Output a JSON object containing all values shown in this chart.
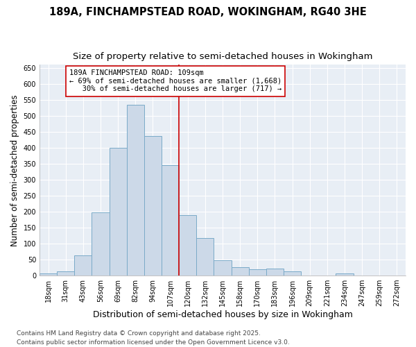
{
  "title": "189A, FINCHAMPSTEAD ROAD, WOKINGHAM, RG40 3HE",
  "subtitle": "Size of property relative to semi-detached houses in Wokingham",
  "xlabel": "Distribution of semi-detached houses by size in Wokingham",
  "ylabel": "Number of semi-detached properties",
  "bin_labels": [
    "18sqm",
    "31sqm",
    "43sqm",
    "56sqm",
    "69sqm",
    "82sqm",
    "94sqm",
    "107sqm",
    "120sqm",
    "132sqm",
    "145sqm",
    "158sqm",
    "170sqm",
    "183sqm",
    "196sqm",
    "209sqm",
    "221sqm",
    "234sqm",
    "247sqm",
    "259sqm",
    "272sqm"
  ],
  "bar_heights": [
    6,
    13,
    63,
    197,
    400,
    535,
    437,
    345,
    190,
    117,
    47,
    27,
    20,
    22,
    13,
    0,
    0,
    6,
    0,
    0,
    0
  ],
  "bar_color": "#ccd9e8",
  "bar_edge_color": "#7aaac8",
  "vline_index": 7,
  "vline_color": "#cc0000",
  "annotation_line1": "189A FINCHAMPSTEAD ROAD: 109sqm",
  "annotation_line2": "← 69% of semi-detached houses are smaller (1,668)",
  "annotation_line3": "   30% of semi-detached houses are larger (717) →",
  "annotation_box_color": "#ffffff",
  "annotation_box_edge": "#cc0000",
  "ylim": [
    0,
    660
  ],
  "yticks": [
    0,
    50,
    100,
    150,
    200,
    250,
    300,
    350,
    400,
    450,
    500,
    550,
    600,
    650
  ],
  "bg_color": "#ffffff",
  "plot_bg_color": "#e8eef5",
  "grid_color": "#ffffff",
  "footnote": "Contains HM Land Registry data © Crown copyright and database right 2025.\nContains public sector information licensed under the Open Government Licence v3.0.",
  "title_fontsize": 10.5,
  "subtitle_fontsize": 9.5,
  "xlabel_fontsize": 9,
  "ylabel_fontsize": 8.5,
  "tick_fontsize": 7,
  "annotation_fontsize": 7.5,
  "footnote_fontsize": 6.5
}
